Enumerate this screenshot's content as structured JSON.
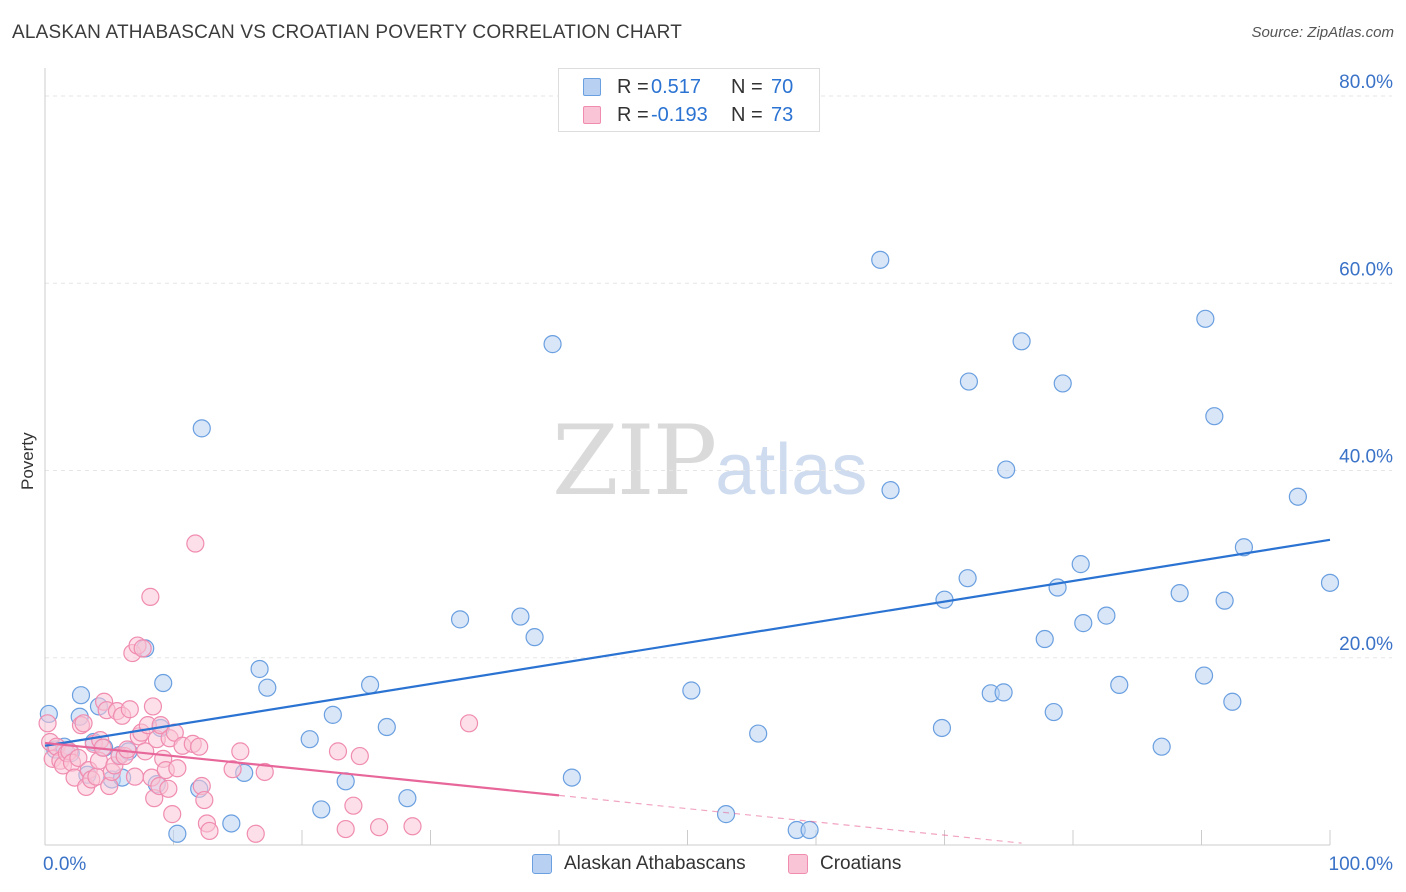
{
  "title": "ALASKAN ATHABASCAN VS CROATIAN POVERTY CORRELATION CHART",
  "source": "Source: ZipAtlas.com",
  "watermark": {
    "zip": "ZIP",
    "atlas": "atlas"
  },
  "colors": {
    "blue": "#6a9fe0",
    "blue_fill": "#b8d1f3",
    "blue_line": "#2b73d2",
    "pink": "#f08cb0",
    "pink_fill": "#f9c4d6",
    "pink_line": "#e8679a",
    "tick_label": "#3a72c7",
    "grid": "#e6e6e6"
  },
  "legend_top": [
    {
      "r_label": "R =",
      "r_value": "0.517",
      "n_label": "N =",
      "n_value": "70"
    },
    {
      "r_label": "R =",
      "r_value": "-0.193",
      "n_label": "N =",
      "n_value": "73"
    }
  ],
  "chart_data": {
    "type": "scatter",
    "title": "ALASKAN ATHABASCAN VS CROATIAN POVERTY CORRELATION CHART",
    "xlabel": "",
    "ylabel": "Poverty",
    "xlim": [
      0,
      100
    ],
    "ylim": [
      0,
      80
    ],
    "x_tick_labels": [
      "0.0%",
      "100.0%"
    ],
    "y_ticks": [
      20,
      40,
      60,
      80
    ],
    "y_tick_labels": [
      "20.0%",
      "40.0%",
      "60.0%",
      "80.0%"
    ],
    "grid": true,
    "legend_position": "bottom",
    "series": [
      {
        "name": "Alaskan Athabascans",
        "r": 0.517,
        "n": 70,
        "trend": {
          "x": [
            0,
            100
          ],
          "y": [
            10.6,
            32.6
          ],
          "dashed_x": [],
          "dashed_y": []
        },
        "points": [
          [
            0.3,
            14.0
          ],
          [
            0.8,
            10.2
          ],
          [
            1.5,
            10.5
          ],
          [
            2.0,
            9.8
          ],
          [
            2.7,
            13.7
          ],
          [
            2.8,
            16.0
          ],
          [
            3.3,
            7.5
          ],
          [
            3.8,
            11.0
          ],
          [
            4.2,
            14.8
          ],
          [
            4.6,
            10.4
          ],
          [
            5.2,
            7.0
          ],
          [
            5.8,
            9.6
          ],
          [
            6.0,
            7.2
          ],
          [
            6.5,
            10.0
          ],
          [
            7.8,
            21.0
          ],
          [
            8.7,
            6.5
          ],
          [
            9.0,
            12.5
          ],
          [
            9.2,
            17.3
          ],
          [
            10.3,
            1.2
          ],
          [
            12.0,
            6.0
          ],
          [
            12.2,
            44.5
          ],
          [
            14.5,
            2.3
          ],
          [
            15.5,
            7.7
          ],
          [
            16.7,
            18.8
          ],
          [
            17.3,
            16.8
          ],
          [
            20.6,
            11.3
          ],
          [
            21.5,
            3.8
          ],
          [
            22.4,
            13.9
          ],
          [
            23.4,
            6.8
          ],
          [
            25.3,
            17.1
          ],
          [
            26.6,
            12.6
          ],
          [
            28.2,
            5.0
          ],
          [
            32.3,
            24.1
          ],
          [
            37.0,
            24.4
          ],
          [
            38.1,
            22.2
          ],
          [
            39.5,
            53.5
          ],
          [
            41.0,
            7.2
          ],
          [
            50.3,
            16.5
          ],
          [
            53.0,
            3.3
          ],
          [
            55.5,
            11.9
          ],
          [
            58.5,
            1.6
          ],
          [
            59.5,
            1.6
          ],
          [
            65.0,
            62.5
          ],
          [
            65.8,
            37.9
          ],
          [
            69.8,
            12.5
          ],
          [
            70.0,
            26.2
          ],
          [
            71.8,
            28.5
          ],
          [
            71.9,
            49.5
          ],
          [
            73.6,
            16.2
          ],
          [
            74.6,
            16.3
          ],
          [
            74.8,
            40.1
          ],
          [
            76.0,
            53.8
          ],
          [
            77.8,
            22.0
          ],
          [
            78.5,
            14.2
          ],
          [
            78.8,
            27.5
          ],
          [
            79.2,
            49.3
          ],
          [
            80.6,
            30.0
          ],
          [
            80.8,
            23.7
          ],
          [
            82.6,
            24.5
          ],
          [
            83.6,
            17.1
          ],
          [
            86.9,
            10.5
          ],
          [
            88.3,
            26.9
          ],
          [
            90.2,
            18.1
          ],
          [
            90.3,
            56.2
          ],
          [
            91.0,
            45.8
          ],
          [
            91.8,
            26.1
          ],
          [
            92.4,
            15.3
          ],
          [
            93.3,
            31.8
          ],
          [
            97.5,
            37.2
          ],
          [
            100.0,
            28.0
          ]
        ]
      },
      {
        "name": "Croatians",
        "r": -0.193,
        "n": 73,
        "trend": {
          "x": [
            0,
            40
          ],
          "y": [
            10.9,
            5.3
          ],
          "dashed_x": [
            40,
            76
          ],
          "dashed_y": [
            5.3,
            0.2
          ]
        },
        "points": [
          [
            0.2,
            13.0
          ],
          [
            0.4,
            11.0
          ],
          [
            0.6,
            9.2
          ],
          [
            0.9,
            10.5
          ],
          [
            1.2,
            9.0
          ],
          [
            1.4,
            8.5
          ],
          [
            1.7,
            9.8
          ],
          [
            1.9,
            10.0
          ],
          [
            2.1,
            8.8
          ],
          [
            2.3,
            7.2
          ],
          [
            2.6,
            9.3
          ],
          [
            2.8,
            12.8
          ],
          [
            3.0,
            13.0
          ],
          [
            3.2,
            6.2
          ],
          [
            3.4,
            8.0
          ],
          [
            3.6,
            7.0
          ],
          [
            3.8,
            10.8
          ],
          [
            4.0,
            7.3
          ],
          [
            4.2,
            9.0
          ],
          [
            4.3,
            11.2
          ],
          [
            4.5,
            10.4
          ],
          [
            4.6,
            15.3
          ],
          [
            4.8,
            14.4
          ],
          [
            5.0,
            6.3
          ],
          [
            5.2,
            7.8
          ],
          [
            5.4,
            8.5
          ],
          [
            5.6,
            14.3
          ],
          [
            5.8,
            9.5
          ],
          [
            6.0,
            13.8
          ],
          [
            6.2,
            9.5
          ],
          [
            6.4,
            10.2
          ],
          [
            6.6,
            14.5
          ],
          [
            6.8,
            20.5
          ],
          [
            7.0,
            7.3
          ],
          [
            7.2,
            21.3
          ],
          [
            7.3,
            11.6
          ],
          [
            7.5,
            12.0
          ],
          [
            7.6,
            21.0
          ],
          [
            7.8,
            10.0
          ],
          [
            8.0,
            12.8
          ],
          [
            8.2,
            26.5
          ],
          [
            8.3,
            7.2
          ],
          [
            8.4,
            14.8
          ],
          [
            8.5,
            5.0
          ],
          [
            8.7,
            11.3
          ],
          [
            8.9,
            6.3
          ],
          [
            9.0,
            12.8
          ],
          [
            9.2,
            9.2
          ],
          [
            9.4,
            8.0
          ],
          [
            9.6,
            6.0
          ],
          [
            9.7,
            11.4
          ],
          [
            9.9,
            3.3
          ],
          [
            10.1,
            12.0
          ],
          [
            10.3,
            8.2
          ],
          [
            10.7,
            10.6
          ],
          [
            11.5,
            10.8
          ],
          [
            11.7,
            32.2
          ],
          [
            12.0,
            10.5
          ],
          [
            12.2,
            6.3
          ],
          [
            12.4,
            4.8
          ],
          [
            12.6,
            2.3
          ],
          [
            12.8,
            1.5
          ],
          [
            14.6,
            8.1
          ],
          [
            15.2,
            10.0
          ],
          [
            16.4,
            1.2
          ],
          [
            17.1,
            7.8
          ],
          [
            22.8,
            10.0
          ],
          [
            23.4,
            1.7
          ],
          [
            24.0,
            4.2
          ],
          [
            24.5,
            9.5
          ],
          [
            26.0,
            1.9
          ],
          [
            28.6,
            2.0
          ],
          [
            33.0,
            13.0
          ]
        ]
      }
    ]
  },
  "legend_bottom": [
    {
      "label": "Alaskan Athabascans"
    },
    {
      "label": "Croatians"
    }
  ]
}
